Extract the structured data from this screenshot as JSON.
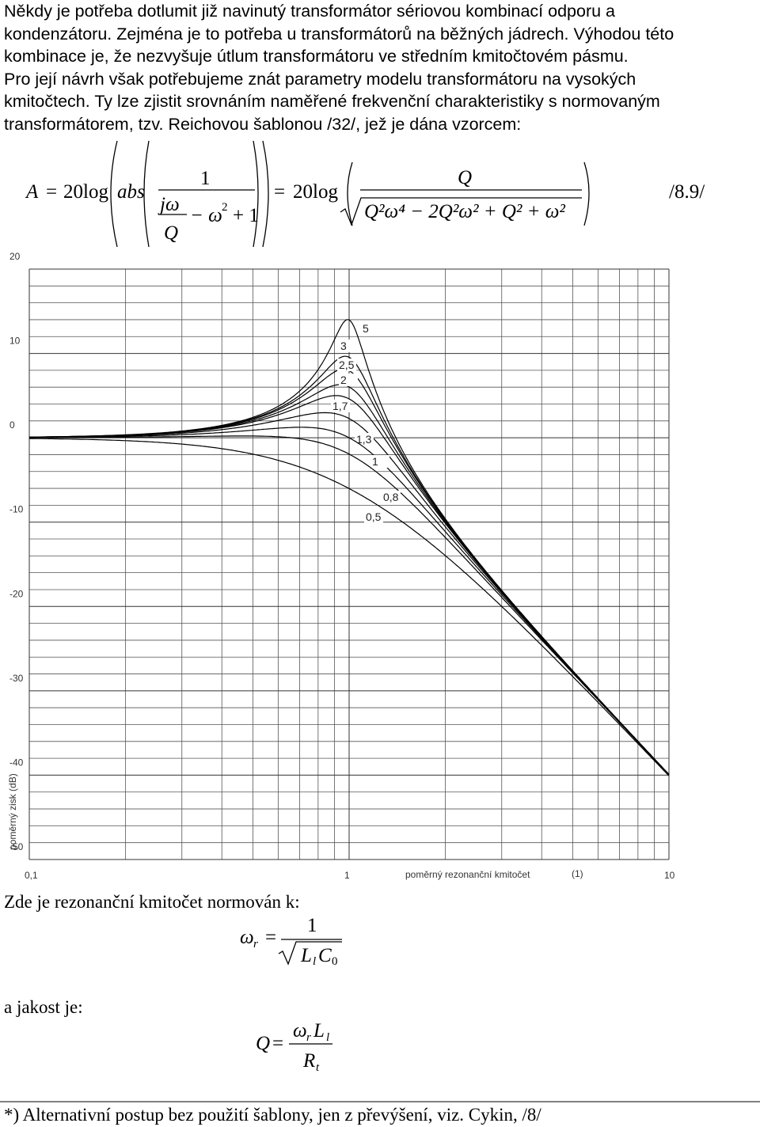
{
  "paragraph": [
    "Někdy je potřeba dotlumit již navinutý transformátor sériovou kombinací odporu a",
    "kondenzátoru. Zejména je to potřeba u transformátorů na běžných jádrech. Výhodou této",
    "kombinace je, že nezvyšuje útlum transformátoru ve středním kmitočtovém pásmu.",
    "Pro její návrh však potřebujeme znát parametry modelu transformátoru na vysokých",
    "kmitočtech. Ty lze zjistit srovnáním naměřené frekvenční charakteristiky s normovaným",
    "transformátorem, tzv. Reichovou šablonou /32/, jež je dána vzorcem:"
  ],
  "formula": {
    "lhs": "A",
    "eq": "=",
    "log": "20log",
    "abs": "abs",
    "one": "1",
    "jw": "jω",
    "q": "Q",
    "minus_w": "− ω",
    "exp": "2",
    "plus_one": "+ 1",
    "eq2": "=",
    "log2": "20log",
    "num": "Q",
    "den": "Q²ω⁴  − 2Q²ω²  + Q²  + ω²",
    "ref": "/8.9/"
  },
  "chart_data": {
    "type": "line",
    "x_label": "poměrný rezonanční kmitočet",
    "x_unit": "(1)",
    "y_label": "poměrný zisk  (dB)",
    "xlog": true,
    "xlim": [
      0.1,
      10
    ],
    "ylim": [
      -50,
      20
    ],
    "xticks": [
      {
        "value": 0.1,
        "label": "0,1"
      },
      1,
      10
    ],
    "yticks": [
      -50,
      -40,
      -30,
      -20,
      -10,
      0,
      10,
      20
    ],
    "x_minor_grid": [
      0.2,
      0.3,
      0.4,
      0.5,
      0.6,
      0.7,
      0.8,
      0.9,
      2,
      3,
      4,
      5,
      6,
      7,
      8,
      9
    ],
    "y_minor_grid": [
      -48,
      -46,
      -44,
      -42,
      -38,
      -36,
      -34,
      -32,
      -28,
      -26,
      -24,
      -22,
      -18,
      -16,
      -14,
      -12,
      -8,
      -6,
      -4,
      -2,
      2,
      4,
      6,
      8,
      12,
      14,
      16,
      18
    ],
    "grid": true,
    "color": "#000000",
    "curves": [
      5,
      3,
      {
        "value": 2.5,
        "label": "2,5"
      },
      2,
      {
        "value": 1.7,
        "label": "1,7"
      },
      {
        "value": 1.3,
        "label": "1,3"
      },
      1,
      {
        "value": 0.8,
        "label": "0,8"
      },
      {
        "value": 0.5,
        "label": "0,5"
      }
    ]
  },
  "normalization": {
    "text": "Zde je rezonanční kmitočet normován k:",
    "omega": "ω",
    "sub_r": "r",
    "eq": "=",
    "one": "1",
    "L": "L",
    "sub_l": "l",
    "C": "C",
    "sub_0": "0"
  },
  "quality": {
    "text": "a jakost je:",
    "Q": "Q",
    "eq": "=",
    "omega": "ω",
    "sub_r": "r",
    "L": "L",
    "sub_l": "l",
    "R": "R",
    "sub_t": "t"
  },
  "footnote": "*) Alternativní postup bez použití šablony, jen z převýšení, viz. Cykin, /8/"
}
